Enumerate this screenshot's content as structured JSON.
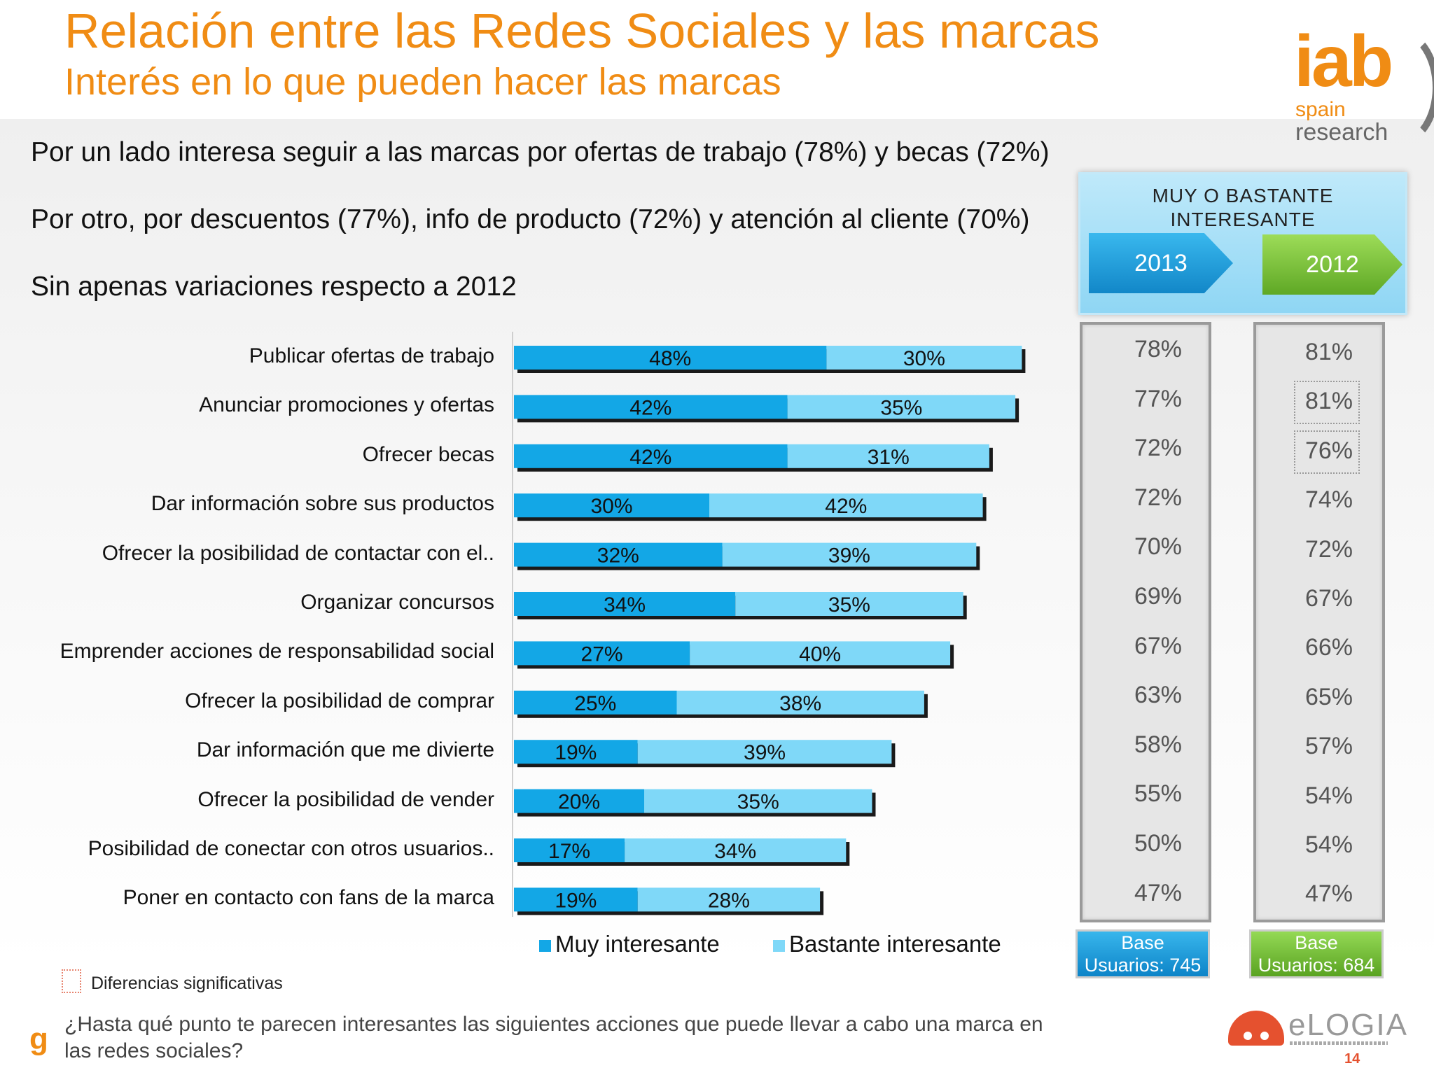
{
  "slide": {
    "title": "Relación entre las Redes Sociales y las marcas",
    "subtitle": "Interés en lo que pueden hacer las marcas",
    "bullets": [
      "Por un lado interesa seguir a las marcas por ofertas de trabajo (78%) y becas (72%)",
      "Por otro, por descuentos (77%), info de producto (72%) y atención al cliente (70%)",
      "Sin apenas variaciones respecto a 2012"
    ],
    "significance_legend": "Diferencias significativas",
    "question": "¿Hasta qué punto te parecen interesantes las siguientes acciones que puede llevar a cabo una marca en las redes sociales?",
    "page_number": "14",
    "accent_color": "#f08c14"
  },
  "logos": {
    "iab_main": "iab",
    "iab_line1": "spain",
    "iab_line2": "research",
    "elogia": "eLOGIA",
    "g_mark": "g"
  },
  "summary_panel": {
    "header": "MUY O BASTANTE INTERESANTE",
    "year_2013": "2013",
    "year_2012": "2012",
    "values_2013": [
      "78%",
      "77%",
      "72%",
      "72%",
      "70%",
      "69%",
      "67%",
      "63%",
      "58%",
      "55%",
      "50%",
      "47%"
    ],
    "values_2012": [
      "81%",
      "81%",
      "76%",
      "74%",
      "72%",
      "67%",
      "66%",
      "65%",
      "57%",
      "54%",
      "54%",
      "47%"
    ],
    "significant_2012_rows": [
      1,
      2
    ],
    "base_2013_line1": "Base",
    "base_2013_line2": "Usuarios: 745",
    "base_2012_line1": "Base",
    "base_2012_line2": "Usuarios: 684",
    "color_2013": "#1a95d8",
    "color_2012": "#74bf36"
  },
  "chart_data": {
    "type": "bar",
    "orientation": "horizontal",
    "stacked": true,
    "categories": [
      "Publicar ofertas de trabajo",
      "Anunciar promociones y ofertas",
      "Ofrecer becas",
      "Dar información sobre sus productos",
      "Ofrecer la posibilidad de contactar con el..",
      "Organizar concursos",
      "Emprender acciones de responsabilidad social",
      "Ofrecer la posibilidad de comprar",
      "Dar información que me divierte",
      "Ofrecer la posibilidad de vender",
      "Posibilidad de conectar con otros usuarios..",
      "Poner en contacto con fans de la marca"
    ],
    "series": [
      {
        "name": "Muy interesante",
        "color": "#13a7e6",
        "values": [
          48,
          42,
          42,
          30,
          32,
          34,
          27,
          25,
          19,
          20,
          17,
          19
        ]
      },
      {
        "name": "Bastante interesante",
        "color": "#7fd8f8",
        "values": [
          30,
          35,
          31,
          42,
          39,
          35,
          40,
          38,
          39,
          35,
          34,
          28
        ]
      }
    ],
    "value_labels": {
      "Muy interesante": [
        "48%",
        "42%",
        "42%",
        "30%",
        "32%",
        "34%",
        "27%",
        "25%",
        "19%",
        "20%",
        "17%",
        "19%"
      ],
      "Bastante interesante": [
        "30%",
        "35%",
        "31%",
        "42%",
        "39%",
        "35%",
        "40%",
        "38%",
        "39%",
        "35%",
        "34%",
        "28%"
      ]
    },
    "xlim": [
      0,
      80
    ],
    "legend_position": "bottom",
    "grid": false
  }
}
